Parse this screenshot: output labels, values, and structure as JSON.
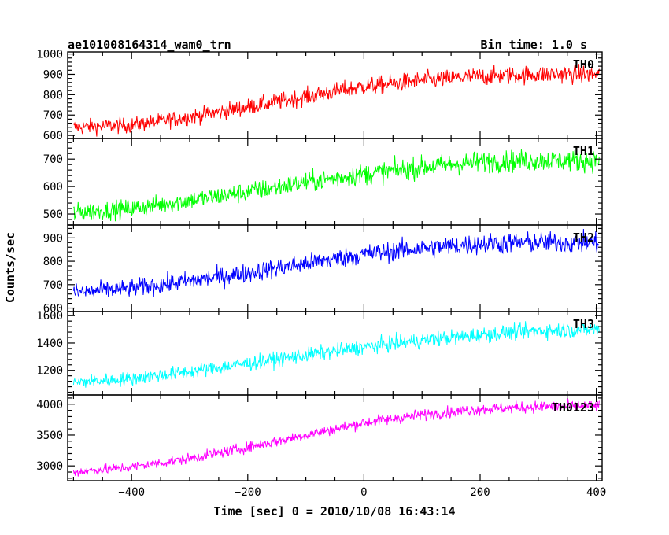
{
  "header": {
    "title": "ae101008164314_wam0_trn",
    "bin_time": "Bin time: 1.0 s"
  },
  "chart_data": {
    "type": "line",
    "xlabel": "Time [sec] 0 = 2010/10/08 16:43:14",
    "ylabel": "Counts/sec",
    "xlim": [
      -510,
      410
    ],
    "x_tick_values": [
      -400,
      -200,
      0,
      200,
      400
    ],
    "x_tick_labels": [
      "−400",
      "−200",
      "0",
      "200",
      "400"
    ],
    "panels": [
      {
        "name": "TH0",
        "color": "#ff0000",
        "ylim": [
          585,
          1010
        ],
        "y_ticks": [
          600,
          700,
          800,
          900,
          1000
        ],
        "y_tick_labels": [
          "600",
          "700",
          "800",
          "900",
          "1000"
        ],
        "trend": {
          "x": [
            -500,
            -400,
            -300,
            -200,
            -100,
            0,
            100,
            200,
            300,
            400
          ],
          "y": [
            640,
            650,
            690,
            740,
            790,
            840,
            870,
            890,
            900,
            900
          ]
        }
      },
      {
        "name": "TH1",
        "color": "#00ff00",
        "ylim": [
          460,
          775
        ],
        "y_ticks": [
          500,
          600,
          700
        ],
        "y_tick_labels": [
          "500",
          "600",
          "700"
        ],
        "trend": {
          "x": [
            -500,
            -400,
            -300,
            -200,
            -100,
            0,
            100,
            200,
            300,
            400
          ],
          "y": [
            505,
            520,
            550,
            580,
            615,
            645,
            670,
            690,
            695,
            695
          ]
        }
      },
      {
        "name": "TH2",
        "color": "#0000ff",
        "ylim": [
          585,
          955
        ],
        "y_ticks": [
          600,
          700,
          800,
          900
        ],
        "y_tick_labels": [
          "600",
          "700",
          "800",
          "900"
        ],
        "trend": {
          "x": [
            -500,
            -400,
            -300,
            -200,
            -100,
            0,
            100,
            200,
            300,
            400
          ],
          "y": [
            665,
            685,
            715,
            750,
            790,
            830,
            855,
            875,
            880,
            880
          ]
        }
      },
      {
        "name": "TH3",
        "color": "#00ffff",
        "ylim": [
          1020,
          1630
        ],
        "y_ticks": [
          1200,
          1400,
          1600
        ],
        "y_tick_labels": [
          "1200",
          "1400",
          "1600"
        ],
        "trend": {
          "x": [
            -500,
            -400,
            -300,
            -200,
            -100,
            0,
            100,
            200,
            300,
            400
          ],
          "y": [
            1110,
            1140,
            1190,
            1250,
            1310,
            1370,
            1420,
            1460,
            1490,
            1500
          ]
        }
      },
      {
        "name": "TH0123",
        "color": "#ff00ff",
        "ylim": [
          2760,
          4150
        ],
        "y_ticks": [
          3000,
          3500,
          4000
        ],
        "y_tick_labels": [
          "3000",
          "3500",
          "4000"
        ],
        "trend": {
          "x": [
            -500,
            -400,
            -300,
            -200,
            -100,
            0,
            100,
            200,
            300,
            400
          ],
          "y": [
            2900,
            2980,
            3120,
            3300,
            3500,
            3700,
            3830,
            3920,
            3960,
            3970
          ]
        }
      }
    ]
  }
}
